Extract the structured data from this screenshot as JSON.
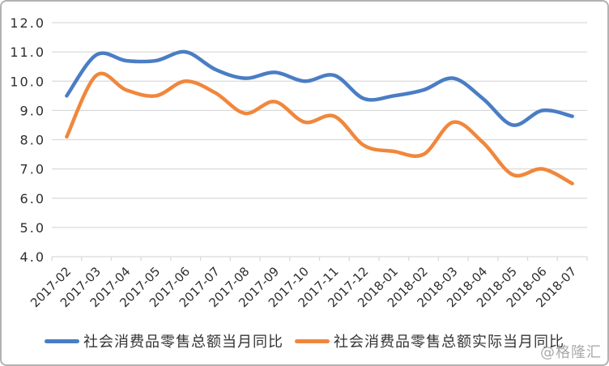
{
  "watermark": "@格隆汇",
  "colors": {
    "grid": "#dadada",
    "axis_text": "#2e2e2e",
    "series_blue": "#4a7dc4",
    "series_orange": "#f0873c",
    "watermark": "#aaaaaa",
    "frame_border": "#b2b2b2"
  },
  "chart_data": {
    "type": "line",
    "title": "",
    "xlabel": "",
    "ylabel": "",
    "categories": [
      "2017-02",
      "2017-03",
      "2017-04",
      "2017-05",
      "2017-06",
      "2017-07",
      "2017-08",
      "2017-09",
      "2017-10",
      "2017-11",
      "2017-12",
      "2018-01",
      "2018-02",
      "2018-03",
      "2018-04",
      "2018-05",
      "2018-06",
      "2018-07"
    ],
    "series": [
      {
        "name": "社会消费品零售总额当月同比",
        "color": "#4a7dc4",
        "values": [
          9.5,
          10.9,
          10.7,
          10.7,
          11.0,
          10.4,
          10.1,
          10.3,
          10.0,
          10.2,
          9.4,
          9.5,
          9.7,
          10.1,
          9.4,
          8.5,
          9.0,
          8.8
        ]
      },
      {
        "name": "社会消费品零售总额实际当月同比",
        "color": "#f0873c",
        "values": [
          8.1,
          10.2,
          9.7,
          9.5,
          10.0,
          9.6,
          8.9,
          9.3,
          8.6,
          8.8,
          7.8,
          7.6,
          7.5,
          8.6,
          7.9,
          6.8,
          7.0,
          6.5
        ]
      }
    ],
    "ylim": [
      4.0,
      12.0
    ],
    "ytick_step": 1.0,
    "yticks": [
      "12.0",
      "11.0",
      "10.0",
      "9.0",
      "8.0",
      "7.0",
      "6.0",
      "5.0",
      "4.0"
    ],
    "grid": true,
    "legend_position": "bottom",
    "line_width": 4.5,
    "smooth": true
  }
}
